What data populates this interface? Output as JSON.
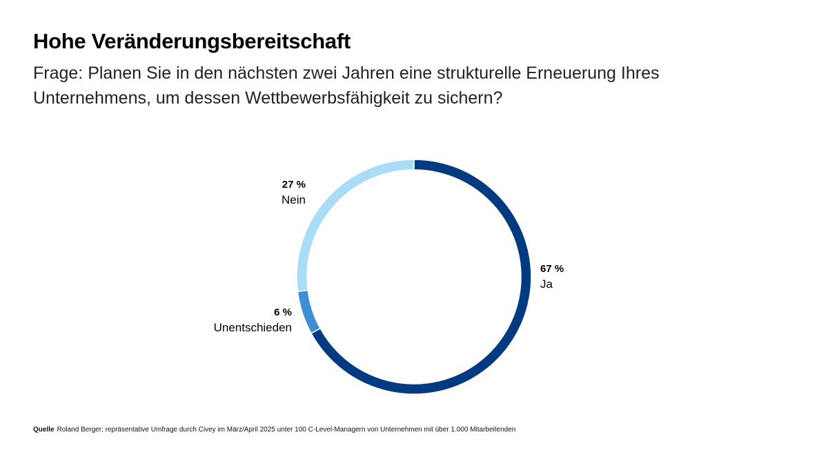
{
  "header": {
    "title": "Hohe Veränderungsbereitschaft",
    "subtitle": "Frage: Planen Sie in den nächsten zwei Jahren eine strukturelle Erneuerung Ihres Unternehmens, um dessen Wettbewerbsfähigkeit zu sichern?"
  },
  "chart_data": {
    "type": "pie",
    "variant": "donut",
    "start": "top",
    "direction": "clockwise",
    "slices": [
      {
        "label": "Ja",
        "value": 67,
        "value_label": "67 %",
        "color": "#003a80"
      },
      {
        "label": "Unentschieden",
        "value": 6,
        "value_label": "6 %",
        "color": "#3d8fd1"
      },
      {
        "label": "Nein",
        "value": 27,
        "value_label": "27 %",
        "color": "#a9dcf6"
      }
    ]
  },
  "footer": {
    "source_label": "Quelle",
    "source_text": "Roland Berger; repräsentative Umfrage durch Civey im März/April 2025 unter 100 C-Level-Managern von Unternehmen mit über 1.000 Mitarbeitenden"
  }
}
